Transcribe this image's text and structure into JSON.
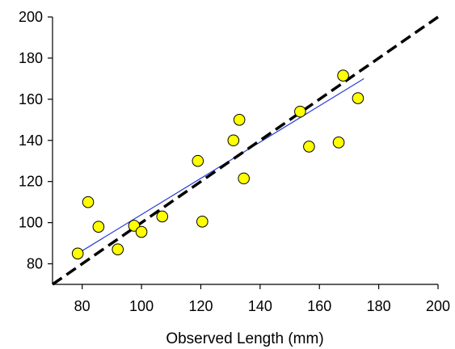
{
  "chart_data": {
    "type": "scatter",
    "title": "",
    "xlabel": "Observed Length (mm)",
    "ylabel": "",
    "xlim": [
      70,
      200
    ],
    "ylim": [
      70,
      200
    ],
    "x_ticks": [
      80,
      100,
      120,
      140,
      160,
      180,
      200
    ],
    "y_ticks": [
      80,
      100,
      120,
      140,
      160,
      180,
      200
    ],
    "grid": false,
    "legend": "none",
    "series": [
      {
        "marker": "circle",
        "color": "#ffff00",
        "edge_color": "#000000",
        "points": [
          {
            "x": 78.5,
            "y": 85
          },
          {
            "x": 82,
            "y": 110
          },
          {
            "x": 85.5,
            "y": 98
          },
          {
            "x": 92,
            "y": 87
          },
          {
            "x": 97.5,
            "y": 98.5
          },
          {
            "x": 100,
            "y": 95.5
          },
          {
            "x": 107,
            "y": 103
          },
          {
            "x": 119,
            "y": 130
          },
          {
            "x": 120.5,
            "y": 100.5
          },
          {
            "x": 131,
            "y": 140
          },
          {
            "x": 133,
            "y": 150
          },
          {
            "x": 134.5,
            "y": 121.5
          },
          {
            "x": 153.5,
            "y": 154
          },
          {
            "x": 156.5,
            "y": 137
          },
          {
            "x": 166.5,
            "y": 139
          },
          {
            "x": 168,
            "y": 171.5
          },
          {
            "x": 173,
            "y": 160.5
          }
        ]
      }
    ],
    "lines": [
      {
        "kind": "regression",
        "color": "#2a3fd6",
        "style": "solid",
        "from": [
          78.5,
          85
        ],
        "to": [
          175,
          170
        ]
      },
      {
        "kind": "1:1",
        "color": "#000000",
        "style": "dashed",
        "from": [
          70,
          70
        ],
        "to": [
          200,
          200
        ]
      }
    ]
  }
}
